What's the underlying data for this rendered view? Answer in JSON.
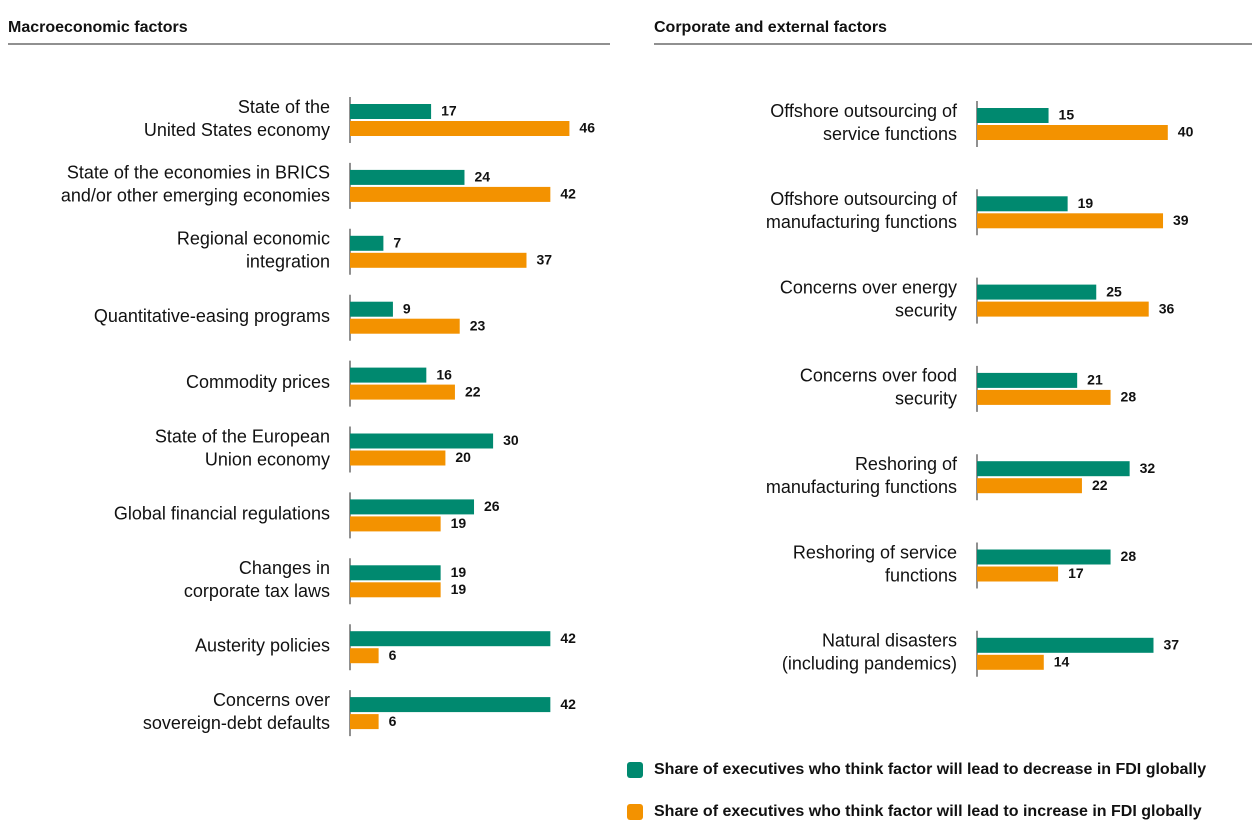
{
  "chart_data": [
    {
      "type": "bar",
      "orientation": "horizontal",
      "title": "Macroeconomic factors",
      "categories": [
        [
          "State of the",
          "United States economy"
        ],
        [
          "State of the economies in BRICS",
          "and/or other emerging economies"
        ],
        [
          "Regional economic",
          "integration"
        ],
        [
          "Quantitative-easing programs"
        ],
        [
          "Commodity prices"
        ],
        [
          "State of the European",
          "Union economy"
        ],
        [
          "Global financial regulations"
        ],
        [
          "Changes in",
          "corporate tax laws"
        ],
        [
          "Austerity policies"
        ],
        [
          "Concerns over",
          "sovereign-debt defaults"
        ]
      ],
      "series": [
        {
          "name": "Share of executives who think factor will lead to decrease in FDI globally",
          "color": "#00896f",
          "values": [
            17,
            24,
            7,
            9,
            16,
            30,
            26,
            19,
            42,
            42
          ]
        },
        {
          "name": "Share of executives who think factor will lead to increase in FDI globally",
          "color": "#f39200",
          "values": [
            46,
            42,
            37,
            23,
            22,
            20,
            19,
            19,
            6,
            6
          ]
        }
      ]
    },
    {
      "type": "bar",
      "orientation": "horizontal",
      "title": "Corporate and external factors",
      "categories": [
        [
          "Offshore outsourcing of",
          "service functions"
        ],
        [
          "Offshore outsourcing of",
          "manufacturing functions"
        ],
        [
          "Concerns over energy",
          "security"
        ],
        [
          "Concerns over food",
          "security"
        ],
        [
          "Reshoring of",
          "manufacturing functions"
        ],
        [
          "Reshoring of service",
          "functions"
        ],
        [
          "Natural disasters",
          "(including pandemics)"
        ]
      ],
      "series": [
        {
          "color": "#00896f",
          "values": [
            15,
            19,
            25,
            21,
            32,
            28,
            37
          ]
        },
        {
          "color": "#f39200",
          "values": [
            40,
            39,
            36,
            28,
            22,
            17,
            14
          ]
        }
      ]
    }
  ]
}
